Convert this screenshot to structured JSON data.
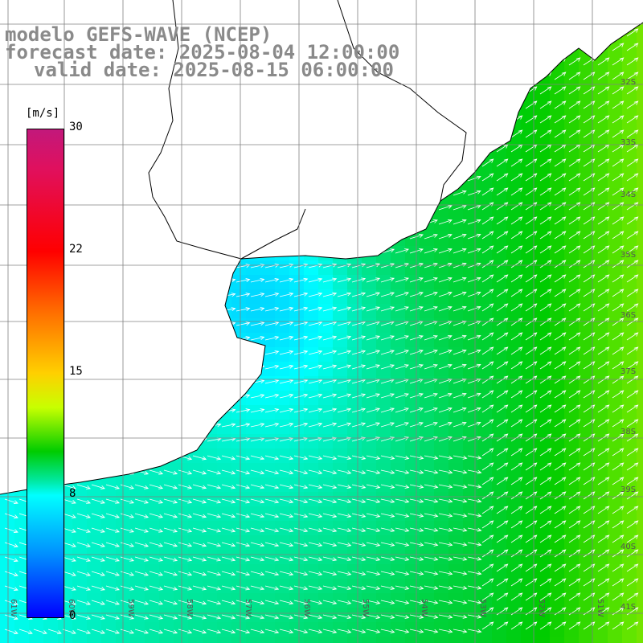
{
  "title": {
    "line1": "modelo GEFS-WAVE (NCEP)",
    "line2": "forecast date: 2025-08-04 12:00:00",
    "line3": "valid date: 2025-08-15 06:00:00"
  },
  "chart_data": {
    "type": "heatmap",
    "variable": "wind speed with direction arrows",
    "colorbar": {
      "unit": "[m/s]",
      "min": 0,
      "max": 30,
      "ticks": [
        "30",
        "22",
        "15",
        "8",
        "0"
      ],
      "tick_values": [
        30,
        22,
        15,
        8,
        0
      ]
    },
    "colors": {
      "land": "#ffffff",
      "coast": "#000000",
      "grid": "#808080",
      "arrows": "#ffffff",
      "title": "#8a8a8a"
    },
    "grid": true,
    "lat_labels": [
      "32S",
      "33S",
      "34S",
      "35S",
      "36S",
      "37S",
      "38S",
      "39S",
      "40S",
      "41S"
    ],
    "lon_labels": [
      "61W",
      "60W",
      "59W",
      "58W",
      "57W",
      "56W",
      "55W",
      "54W",
      "53W",
      "52W",
      "51W"
    ],
    "speed_field_description": "lower ~7-9 m/s near coast (blue/cyan), increasing to ~11-13 m/s offshore east (green)"
  }
}
